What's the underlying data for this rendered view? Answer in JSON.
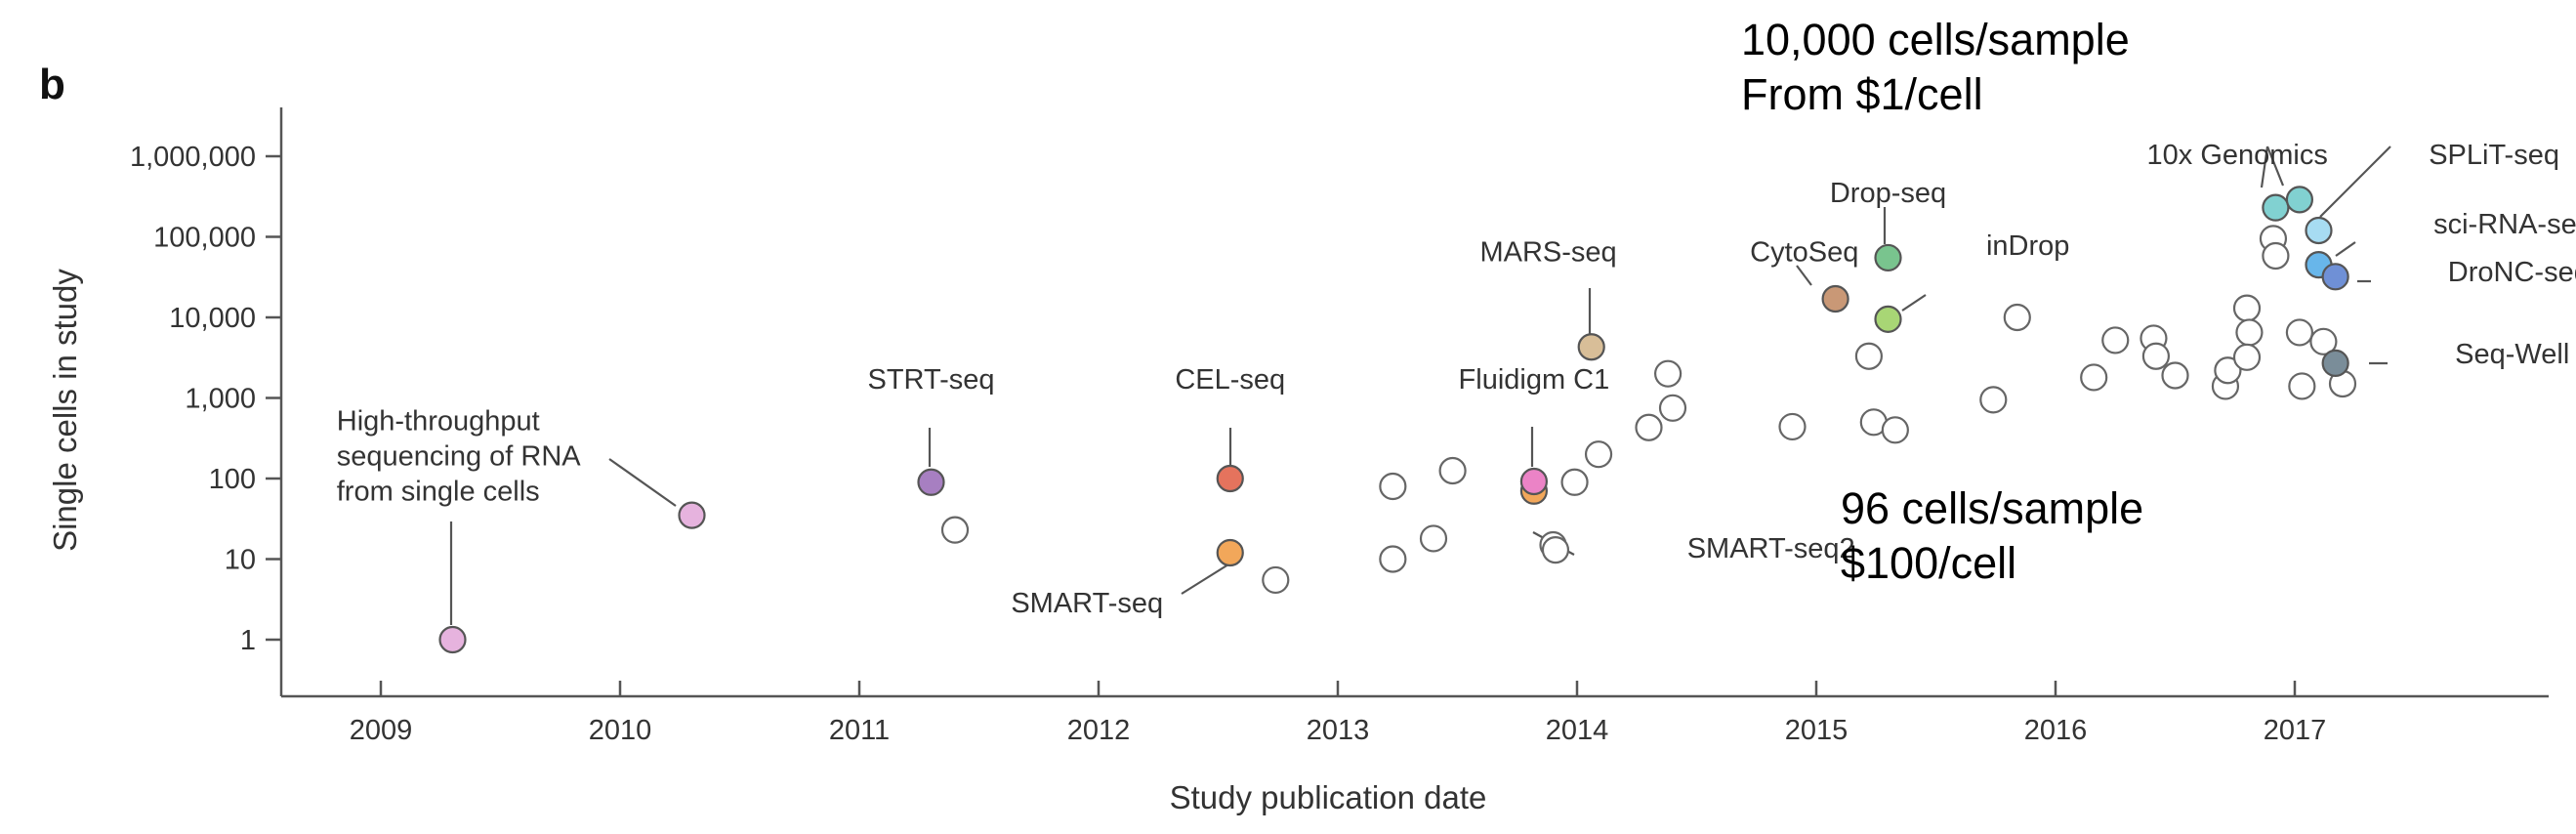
{
  "chart_data": {
    "type": "scatter",
    "panel_label": "b",
    "xlabel": "Study publication date",
    "ylabel": "Single cells in study",
    "yscale": "log",
    "xlim": [
      2008.6,
      2017.95
    ],
    "ylim": [
      0.3,
      1500000
    ],
    "x_ticks": [
      2009,
      2010,
      2011,
      2012,
      2013,
      2014,
      2015,
      2016,
      2017
    ],
    "x_tick_labels": [
      "2009",
      "2010",
      "2011",
      "2012",
      "2013",
      "2014",
      "2015",
      "2016",
      "2017"
    ],
    "y_ticks": [
      1,
      10,
      100,
      1000,
      10000,
      100000,
      1000000
    ],
    "y_tick_labels": [
      "1",
      "10",
      "100",
      "1,000",
      "10,000",
      "100,000",
      "1,000,000"
    ],
    "grid": false,
    "unlabeled_points": [
      {
        "x": 2011.4,
        "y": 23
      },
      {
        "x": 2012.74,
        "y": 5.5
      },
      {
        "x": 2013.23,
        "y": 80
      },
      {
        "x": 2013.23,
        "y": 10
      },
      {
        "x": 2013.4,
        "y": 18
      },
      {
        "x": 2013.48,
        "y": 125
      },
      {
        "x": 2013.9,
        "y": 15
      },
      {
        "x": 2013.91,
        "y": 13
      },
      {
        "x": 2013.99,
        "y": 90
      },
      {
        "x": 2014.09,
        "y": 200
      },
      {
        "x": 2014.3,
        "y": 430
      },
      {
        "x": 2014.38,
        "y": 2000
      },
      {
        "x": 2014.4,
        "y": 750
      },
      {
        "x": 2014.9,
        "y": 440
      },
      {
        "x": 2015.22,
        "y": 3300
      },
      {
        "x": 2015.24,
        "y": 500
      },
      {
        "x": 2015.33,
        "y": 400
      },
      {
        "x": 2015.74,
        "y": 950
      },
      {
        "x": 2015.84,
        "y": 10000
      },
      {
        "x": 2016.16,
        "y": 1800
      },
      {
        "x": 2016.25,
        "y": 5200
      },
      {
        "x": 2016.41,
        "y": 5500
      },
      {
        "x": 2016.42,
        "y": 3300
      },
      {
        "x": 2016.5,
        "y": 1900
      },
      {
        "x": 2016.71,
        "y": 1400
      },
      {
        "x": 2016.72,
        "y": 2200
      },
      {
        "x": 2016.8,
        "y": 13000
      },
      {
        "x": 2016.81,
        "y": 6500
      },
      {
        "x": 2016.8,
        "y": 3200
      },
      {
        "x": 2016.91,
        "y": 95000
      },
      {
        "x": 2016.92,
        "y": 58000
      },
      {
        "x": 2017.02,
        "y": 6500
      },
      {
        "x": 2017.03,
        "y": 1400
      },
      {
        "x": 2017.12,
        "y": 5000
      },
      {
        "x": 2017.2,
        "y": 1500
      }
    ],
    "labeled_points": [
      {
        "label": "High-throughput\nsequencing of RNA\nfrom single cells",
        "x": 2010.3,
        "y": 35,
        "color": "#e6b3de",
        "label_x": 2009.55,
        "label_y": 400
      },
      {
        "label": "",
        "x": 2009.3,
        "y": 1,
        "color": "#e6b3de"
      },
      {
        "label": "STRT-seq",
        "x": 2011.3,
        "y": 90,
        "color": "#a77fc1",
        "label_x": 2011.3,
        "label_y": 1300
      },
      {
        "label": "CEL-seq",
        "x": 2012.55,
        "y": 100,
        "color": "#e5735d",
        "label_x": 2012.55,
        "label_y": 1300
      },
      {
        "label": "SMART-seq",
        "x": 2012.55,
        "y": 12,
        "color": "#f2a75a",
        "label_x": 2012.27,
        "label_y": 2.2
      },
      {
        "label": "SMART-seq2",
        "x": 2013.82,
        "y": 70,
        "color": "#f2a75a",
        "label_x": 2014.46,
        "label_y": 10.5
      },
      {
        "label": "Fluidigm C1",
        "x": 2013.82,
        "y": 92,
        "color": "#eb83c6",
        "label_x": 2013.82,
        "label_y": 1300
      },
      {
        "label": "MARS-seq",
        "x": 2014.06,
        "y": 4300,
        "color": "#d8be98",
        "label_x": 2013.88,
        "label_y": 50000
      },
      {
        "label": "CytoSeq",
        "x": 2015.08,
        "y": 17000,
        "color": "#c99876",
        "label_x": 2014.95,
        "label_y": 50000
      },
      {
        "label": "Drop-seq",
        "x": 2015.3,
        "y": 55000,
        "color": "#79c48e",
        "label_x": 2015.3,
        "label_y": 270000
      },
      {
        "label": "inDrop",
        "x": 2015.3,
        "y": 9500,
        "color": "#a8d675",
        "label_x": 2015.71,
        "label_y": 60000
      },
      {
        "label": "10x Genomics",
        "x": 2016.92,
        "y": 230000,
        "color": "#81d1d1",
        "label_x": 2016.76,
        "label_y": 800000
      },
      {
        "label": "",
        "x": 2017.02,
        "y": 290000,
        "color": "#81d1d1"
      },
      {
        "label": "SPLiT-seq",
        "x": 2017.1,
        "y": 120000,
        "color": "#a7dcf2",
        "label_x": 2017.56,
        "label_y": 800000
      },
      {
        "label": "sci-RNA-seq",
        "x": 2017.1,
        "y": 45000,
        "color": "#68b6ea",
        "label_x": 2017.58,
        "label_y": 110000
      },
      {
        "label": "DroNC-seq",
        "x": 2017.17,
        "y": 32000,
        "color": "#6f90d6",
        "label_x": 2017.64,
        "label_y": 28000
      },
      {
        "label": "Seq-Well",
        "x": 2017.17,
        "y": 2700,
        "color": "#7a8d99",
        "label_x": 2017.67,
        "label_y": 2700
      }
    ],
    "annotations": [
      {
        "text": "10,000 cells/sample\nFrom $1/cell"
      },
      {
        "text": "96 cells/sample\n$100/cell"
      }
    ]
  }
}
